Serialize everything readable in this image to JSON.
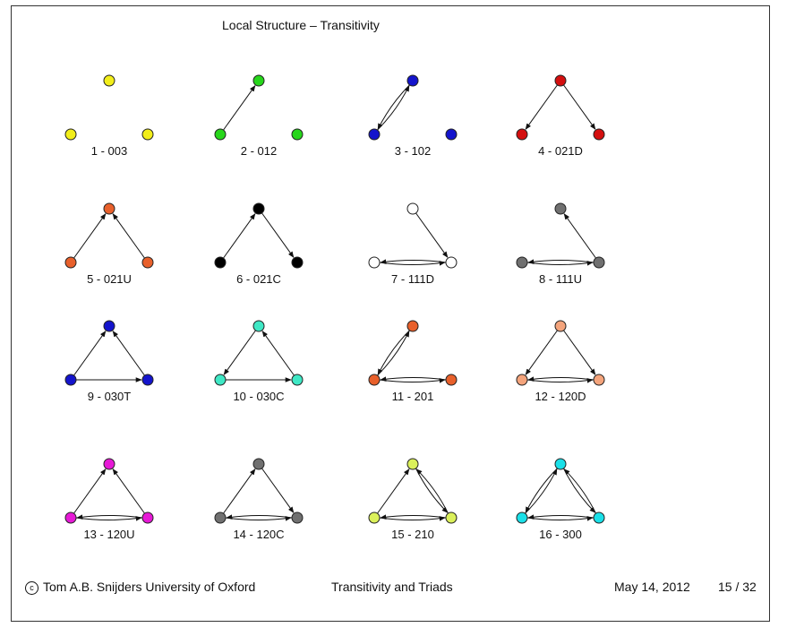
{
  "slide": {
    "title": "Local Structure – Transitivity",
    "footer": {
      "author": "Tom A.B. Snijders  University of Oxford",
      "copyright_symbol": "c",
      "topic": "Transitivity and Triads",
      "date": "May 14, 2012",
      "page": "15 / 32"
    }
  },
  "triads": [
    {
      "label": "1 - 003",
      "color": "#f2ee1a",
      "edges": []
    },
    {
      "label": "2 - 012",
      "color": "#27d61b",
      "edges": [
        [
          "L",
          "T"
        ]
      ]
    },
    {
      "label": "3 - 102",
      "color": "#1414cc",
      "edges": [
        [
          "L",
          "T"
        ],
        [
          "T",
          "L"
        ]
      ]
    },
    {
      "label": "4 - 021D",
      "color": "#d40f0f",
      "edges": [
        [
          "T",
          "L"
        ],
        [
          "T",
          "R"
        ]
      ]
    },
    {
      "label": "5 - 021U",
      "color": "#e8602b",
      "edges": [
        [
          "L",
          "T"
        ],
        [
          "R",
          "T"
        ]
      ]
    },
    {
      "label": "6 - 021C",
      "color": "#000000",
      "edges": [
        [
          "L",
          "T"
        ],
        [
          "T",
          "R"
        ]
      ]
    },
    {
      "label": "7 - 111D",
      "color": "#ffffff",
      "edges": [
        [
          "T",
          "R"
        ],
        [
          "L",
          "R"
        ],
        [
          "R",
          "L"
        ]
      ]
    },
    {
      "label": "8 - 111U",
      "color": "#707070",
      "edges": [
        [
          "R",
          "T"
        ],
        [
          "L",
          "R"
        ],
        [
          "R",
          "L"
        ]
      ]
    },
    {
      "label": "9 - 030T",
      "color": "#1414cc",
      "edges": [
        [
          "L",
          "T"
        ],
        [
          "R",
          "T"
        ],
        [
          "L",
          "R"
        ]
      ]
    },
    {
      "label": "10 - 030C",
      "color": "#3fe8c5",
      "edges": [
        [
          "T",
          "L"
        ],
        [
          "L",
          "R"
        ],
        [
          "R",
          "T"
        ]
      ]
    },
    {
      "label": "11 - 201",
      "color": "#e8602b",
      "edges": [
        [
          "L",
          "T"
        ],
        [
          "T",
          "L"
        ],
        [
          "L",
          "R"
        ],
        [
          "R",
          "L"
        ]
      ]
    },
    {
      "label": "12 - 120D",
      "color": "#f4a47c",
      "edges": [
        [
          "T",
          "L"
        ],
        [
          "T",
          "R"
        ],
        [
          "L",
          "R"
        ],
        [
          "R",
          "L"
        ]
      ]
    },
    {
      "label": "13 - 120U",
      "color": "#e619d6",
      "edges": [
        [
          "L",
          "T"
        ],
        [
          "R",
          "T"
        ],
        [
          "L",
          "R"
        ],
        [
          "R",
          "L"
        ]
      ]
    },
    {
      "label": "14 - 120C",
      "color": "#707070",
      "edges": [
        [
          "L",
          "T"
        ],
        [
          "T",
          "R"
        ],
        [
          "L",
          "R"
        ],
        [
          "R",
          "L"
        ]
      ]
    },
    {
      "label": "15 - 210",
      "color": "#dbf05a",
      "edges": [
        [
          "L",
          "T"
        ],
        [
          "T",
          "R"
        ],
        [
          "R",
          "T"
        ],
        [
          "L",
          "R"
        ],
        [
          "R",
          "L"
        ]
      ]
    },
    {
      "label": "16 - 300",
      "color": "#1ae0e8",
      "edges": [
        [
          "L",
          "T"
        ],
        [
          "T",
          "L"
        ],
        [
          "T",
          "R"
        ],
        [
          "R",
          "T"
        ],
        [
          "L",
          "R"
        ],
        [
          "R",
          "L"
        ]
      ]
    }
  ]
}
